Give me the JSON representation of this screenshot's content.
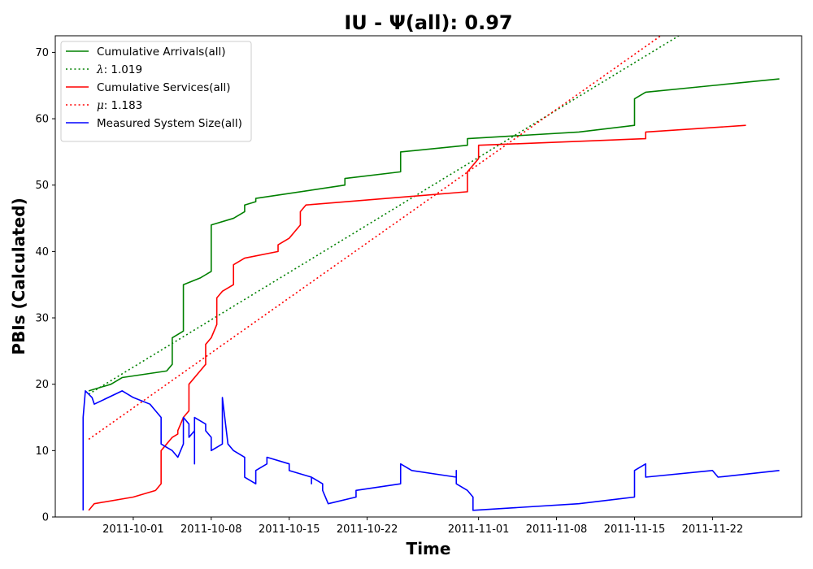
{
  "chart_data": {
    "type": "line",
    "title": "IU -  Ψ(all): 0.97",
    "xlabel": "Time",
    "ylabel": "PBIs (Calculated)",
    "xlim": [
      "2011-09-24",
      "2011-11-30"
    ],
    "ylim": [
      0,
      72.5
    ],
    "x_ticks": [
      "2011-10-01",
      "2011-10-08",
      "2011-10-15",
      "2011-10-22",
      "2011-11-01",
      "2011-11-08",
      "2011-11-15",
      "2011-11-22"
    ],
    "y_ticks": [
      0,
      10,
      20,
      30,
      40,
      50,
      60,
      70
    ],
    "grid": false,
    "legend_position": "top-left",
    "series": [
      {
        "name": "Cumulative Arrivals(all)",
        "color": "#008000",
        "style": "solid",
        "points": [
          [
            "2011-09-27",
            19
          ],
          [
            "2011-09-29",
            20
          ],
          [
            "2011-09-30",
            21
          ],
          [
            "2011-10-04",
            22
          ],
          [
            "2011-10-04.5",
            23
          ],
          [
            "2011-10-04.5",
            27
          ],
          [
            "2011-10-05",
            27.5
          ],
          [
            "2011-10-05.5",
            28
          ],
          [
            "2011-10-05.5",
            35
          ],
          [
            "2011-10-07",
            36
          ],
          [
            "2011-10-08",
            37
          ],
          [
            "2011-10-08",
            44
          ],
          [
            "2011-10-10",
            45
          ],
          [
            "2011-10-11",
            46
          ],
          [
            "2011-10-11",
            47
          ],
          [
            "2011-10-12",
            47.5
          ],
          [
            "2011-10-12",
            48
          ],
          [
            "2011-10-20",
            50
          ],
          [
            "2011-10-20",
            51
          ],
          [
            "2011-10-25",
            52
          ],
          [
            "2011-10-25",
            55
          ],
          [
            "2011-10-31",
            56
          ],
          [
            "2011-10-31",
            57
          ],
          [
            "2011-11-10",
            58
          ],
          [
            "2011-11-15",
            59
          ],
          [
            "2011-11-15",
            63
          ],
          [
            "2011-11-16",
            64
          ],
          [
            "2011-11-22",
            65
          ],
          [
            "2011-11-28",
            66
          ]
        ]
      },
      {
        "name": "λ: 1.019",
        "color": "#008000",
        "style": "dotted",
        "points": [
          [
            "2011-09-27",
            18.5
          ],
          [
            "2011-11-28",
            81.7
          ]
        ]
      },
      {
        "name": "Cumulative Services(all)",
        "color": "#ff0000",
        "style": "solid",
        "points": [
          [
            "2011-09-27",
            1
          ],
          [
            "2011-09-27.5",
            2
          ],
          [
            "2011-10-01",
            3
          ],
          [
            "2011-10-03",
            4
          ],
          [
            "2011-10-03.5",
            5
          ],
          [
            "2011-10-03.5",
            6
          ],
          [
            "2011-10-03.5",
            10
          ],
          [
            "2011-10-04",
            11
          ],
          [
            "2011-10-04.5",
            12
          ],
          [
            "2011-10-05",
            12.5
          ],
          [
            "2011-10-05",
            13
          ],
          [
            "2011-10-05.5",
            15
          ],
          [
            "2011-10-06",
            16
          ],
          [
            "2011-10-06",
            20
          ],
          [
            "2011-10-07",
            22
          ],
          [
            "2011-10-07.5",
            23
          ],
          [
            "2011-10-07.5",
            26
          ],
          [
            "2011-10-08",
            27
          ],
          [
            "2011-10-08.5",
            29
          ],
          [
            "2011-10-08.5",
            33
          ],
          [
            "2011-10-09",
            34
          ],
          [
            "2011-10-10",
            35
          ],
          [
            "2011-10-10",
            38
          ],
          [
            "2011-10-11",
            39
          ],
          [
            "2011-10-14",
            40
          ],
          [
            "2011-10-14",
            41
          ],
          [
            "2011-10-15",
            42
          ],
          [
            "2011-10-15.5",
            43
          ],
          [
            "2011-10-16",
            44
          ],
          [
            "2011-10-16",
            46
          ],
          [
            "2011-10-16.5",
            47
          ],
          [
            "2011-10-31",
            49
          ],
          [
            "2011-10-31",
            52
          ],
          [
            "2011-10-31.5",
            53
          ],
          [
            "2011-11-01",
            54
          ],
          [
            "2011-11-01",
            56
          ],
          [
            "2011-11-16",
            57
          ],
          [
            "2011-11-16",
            58
          ],
          [
            "2011-11-25",
            59
          ]
        ]
      },
      {
        "name": "μ: 1.183",
        "color": "#ff0000",
        "style": "dotted",
        "points": [
          [
            "2011-09-27",
            11.7
          ],
          [
            "2011-11-28",
            85.1
          ]
        ]
      },
      {
        "name": "Measured System Size(all)",
        "color": "#0000ff",
        "style": "solid",
        "points": [
          [
            "2011-09-26.5",
            1
          ],
          [
            "2011-09-26.5",
            15
          ],
          [
            "2011-09-26.7",
            19
          ],
          [
            "2011-09-27",
            18.5
          ],
          [
            "2011-09-27.3",
            18
          ],
          [
            "2011-09-27.5",
            17
          ],
          [
            "2011-09-30",
            19
          ],
          [
            "2011-10-01",
            18
          ],
          [
            "2011-10-02.5",
            17
          ],
          [
            "2011-10-03",
            16
          ],
          [
            "2011-10-03.5",
            15
          ],
          [
            "2011-10-03.5",
            11
          ],
          [
            "2011-10-04",
            10.5
          ],
          [
            "2011-10-04.5",
            10
          ],
          [
            "2011-10-05",
            9
          ],
          [
            "2011-10-05.5",
            11
          ],
          [
            "2011-10-05.5",
            15
          ],
          [
            "2011-10-06",
            14
          ],
          [
            "2011-10-06",
            12
          ],
          [
            "2011-10-06.5",
            13
          ],
          [
            "2011-10-06.5",
            8
          ],
          [
            "2011-10-06.5",
            15
          ],
          [
            "2011-10-07.5",
            14
          ],
          [
            "2011-10-07.5",
            13
          ],
          [
            "2011-10-08",
            12
          ],
          [
            "2011-10-08",
            10
          ],
          [
            "2011-10-08.5",
            10.5
          ],
          [
            "2011-10-09",
            11
          ],
          [
            "2011-10-09",
            18
          ],
          [
            "2011-10-09.5",
            11
          ],
          [
            "2011-10-10",
            10
          ],
          [
            "2011-10-11",
            9
          ],
          [
            "2011-10-11",
            6
          ],
          [
            "2011-10-12",
            5
          ],
          [
            "2011-10-12",
            7
          ],
          [
            "2011-10-13",
            8
          ],
          [
            "2011-10-13",
            9
          ],
          [
            "2011-10-15",
            8
          ],
          [
            "2011-10-15",
            7
          ],
          [
            "2011-10-17",
            6
          ],
          [
            "2011-10-17",
            5
          ],
          [
            "2011-10-17",
            6
          ],
          [
            "2011-10-18",
            5
          ],
          [
            "2011-10-18",
            4
          ],
          [
            "2011-10-18.5",
            2
          ],
          [
            "2011-10-21",
            3
          ],
          [
            "2011-10-21",
            4
          ],
          [
            "2011-10-25",
            5
          ],
          [
            "2011-10-25",
            8
          ],
          [
            "2011-10-26",
            7
          ],
          [
            "2011-10-30",
            6
          ],
          [
            "2011-10-30",
            7
          ],
          [
            "2011-10-30",
            5
          ],
          [
            "2011-10-31",
            4
          ],
          [
            "2011-10-31.5",
            3
          ],
          [
            "2011-10-31.5",
            1
          ],
          [
            "2011-11-10",
            2
          ],
          [
            "2011-11-15",
            3
          ],
          [
            "2011-11-15",
            7
          ],
          [
            "2011-11-16",
            8
          ],
          [
            "2011-11-16",
            6
          ],
          [
            "2011-11-22",
            7
          ],
          [
            "2011-11-22.5",
            6
          ],
          [
            "2011-11-28",
            7
          ]
        ]
      }
    ]
  }
}
